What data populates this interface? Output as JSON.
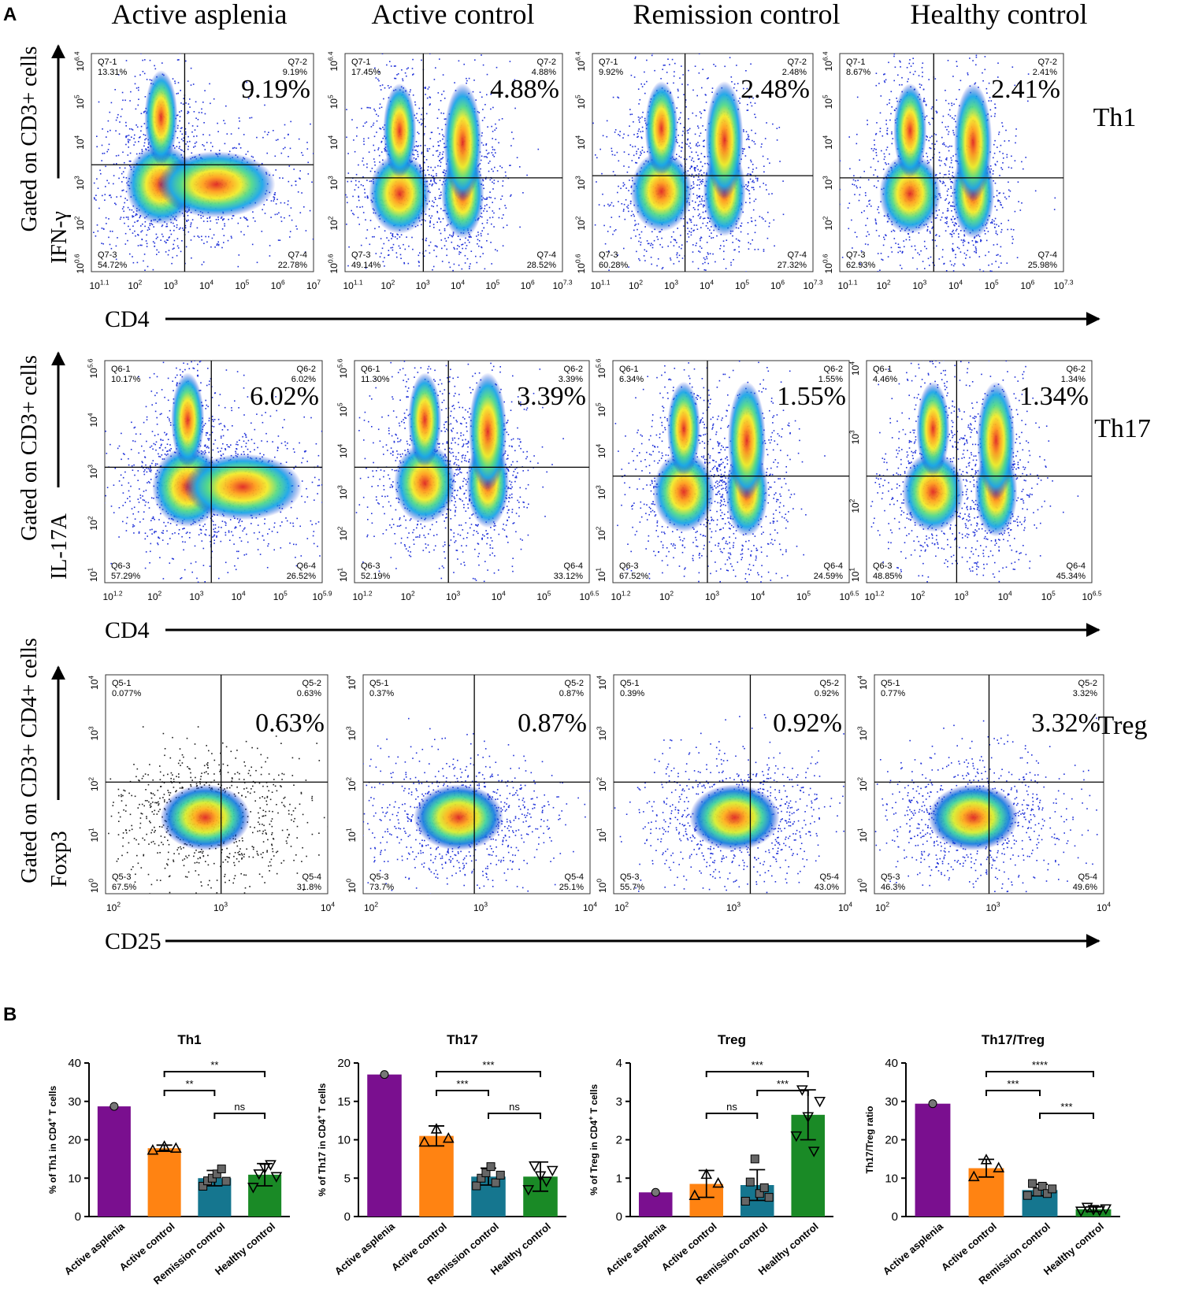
{
  "panel_labels": {
    "a": "A",
    "b": "B"
  },
  "conditions": [
    "Active asplenia",
    "Active control",
    "Remission control",
    "Healthy control"
  ],
  "flow_rows": [
    {
      "name": "Th1",
      "y_label_gate": "Gated on CD3+ cells",
      "y_marker": "IFN-γ",
      "x_marker": "CD4",
      "quadrant_prefix": "Q7",
      "plots": [
        {
          "q1": "13.31%",
          "q2": "9.19%",
          "q3": "54.72%",
          "q4": "22.78%",
          "big": "9.19%",
          "x_ticks": [
            "10^1.1",
            "10^2",
            "10^3",
            "10^4",
            "10^5",
            "10^6",
            "10^7"
          ],
          "y_ticks": [
            "10^0.6",
            "10^2",
            "10^3",
            "10^4",
            "10^5",
            "10^6.4"
          ]
        },
        {
          "q1": "17.45%",
          "q2": "4.88%",
          "q3": "49.14%",
          "q4": "28.52%",
          "big": "4.88%",
          "x_ticks": [
            "10^1.1",
            "10^2",
            "10^3",
            "10^4",
            "10^5",
            "10^6",
            "10^7.3"
          ],
          "y_ticks": [
            "10^0.6",
            "10^2",
            "10^3",
            "10^4",
            "10^5",
            "10^6.4"
          ]
        },
        {
          "q1": "9.92%",
          "q2": "2.48%",
          "q3": "60.28%",
          "q4": "27.32%",
          "big": "2.48%",
          "x_ticks": [
            "10^1.1",
            "10^2",
            "10^3",
            "10^4",
            "10^5",
            "10^6",
            "10^7.3"
          ],
          "y_ticks": [
            "10^0.6",
            "10^2",
            "10^3",
            "10^4",
            "10^5",
            "10^6.4"
          ]
        },
        {
          "q1": "8.67%",
          "q2": "2.41%",
          "q3": "62.93%",
          "q4": "25.98%",
          "big": "2.41%",
          "x_ticks": [
            "10^1.1",
            "10^2",
            "10^3",
            "10^4",
            "10^5",
            "10^6",
            "10^7.3"
          ],
          "y_ticks": [
            "10^0.6",
            "10^2",
            "10^3",
            "10^4",
            "10^5",
            "10^6.4"
          ]
        }
      ]
    },
    {
      "name": "Th17",
      "y_label_gate": "Gated on CD3+ cells",
      "y_marker": "IL-17A",
      "x_marker": "CD4",
      "quadrant_prefix": "Q6",
      "plots": [
        {
          "q1": "10.17%",
          "q2": "6.02%",
          "q3": "57.29%",
          "q4": "26.52%",
          "big": "6.02%",
          "x_ticks": [
            "10^1.2",
            "10^2",
            "10^3",
            "10^4",
            "10^5",
            "10^5.9"
          ],
          "y_ticks": [
            "10^1",
            "10^2",
            "10^3",
            "10^4",
            "10^5.6"
          ]
        },
        {
          "q1": "11.30%",
          "q2": "3.39%",
          "q3": "52.19%",
          "q4": "33.12%",
          "big": "3.39%",
          "x_ticks": [
            "10^1.2",
            "10^2",
            "10^3",
            "10^4",
            "10^5",
            "10^6.5"
          ],
          "y_ticks": [
            "10^1",
            "10^2",
            "10^3",
            "10^4",
            "10^5",
            "10^5.6"
          ]
        },
        {
          "q1": "6.34%",
          "q2": "1.55%",
          "q3": "67.52%",
          "q4": "24.59%",
          "big": "1.55%",
          "x_ticks": [
            "10^1.2",
            "10^2",
            "10^3",
            "10^4",
            "10^5",
            "10^6.5"
          ],
          "y_ticks": [
            "10^1",
            "10^2",
            "10^3",
            "10^4",
            "10^5",
            "10^5.6"
          ]
        },
        {
          "q1": "4.46%",
          "q2": "1.34%",
          "q3": "48.85%",
          "q4": "45.34%",
          "big": "1.34%",
          "x_ticks": [
            "10^1.2",
            "10^2",
            "10^3",
            "10^4",
            "10^5",
            "10^6.5"
          ],
          "y_ticks": [
            "10^1",
            "10^2",
            "10^3",
            "10^4"
          ]
        }
      ]
    },
    {
      "name": "Treg",
      "y_label_gate": "Gated on CD3+ CD4+ cells",
      "y_marker": "Foxp3",
      "x_marker": "CD25",
      "quadrant_prefix": "Q5",
      "plots": [
        {
          "q1": "0.077%",
          "q2": "0.63%",
          "q3": "67.5%",
          "q4": "31.8%",
          "big": "0.63%",
          "x_ticks": [
            "10^2",
            "10^3",
            "10^4"
          ],
          "y_ticks": [
            "10^0",
            "10^1",
            "10^2",
            "10^3",
            "10^4"
          ]
        },
        {
          "q1": "0.37%",
          "q2": "0.87%",
          "q3": "73.7%",
          "q4": "25.1%",
          "big": "0.87%",
          "x_ticks": [
            "10^2",
            "10^3",
            "10^4"
          ],
          "y_ticks": [
            "10^0",
            "10^1",
            "10^2",
            "10^3",
            "10^4"
          ]
        },
        {
          "q1": "0.39%",
          "q2": "0.92%",
          "q3": "55.7%",
          "q4": "43.0%",
          "big": "0.92%",
          "x_ticks": [
            "10^2",
            "10^3",
            "10^4"
          ],
          "y_ticks": [
            "10^0",
            "10^1",
            "10^2",
            "10^3",
            "10^4"
          ]
        },
        {
          "q1": "0.77%",
          "q2": "3.32%",
          "q3": "46.3%",
          "q4": "49.6%",
          "big": "3.32%",
          "x_ticks": [
            "10^2",
            "10^3",
            "10^4"
          ],
          "y_ticks": [
            "10^0",
            "10^1",
            "10^2",
            "10^3",
            "10^4"
          ]
        }
      ]
    }
  ],
  "chart_data": [
    {
      "type": "bar",
      "title": "Th1",
      "ylabel": "% of Th1 in CD4+ T cells",
      "ylim": [
        0,
        40
      ],
      "yticks": [
        0,
        10,
        20,
        30,
        40
      ],
      "categories": [
        "Active asplenia",
        "Active control",
        "Remission control",
        "Healthy control"
      ],
      "values": [
        28.7,
        17.8,
        10.0,
        10.9
      ],
      "errors": [
        0,
        0.8,
        2.0,
        2.9
      ],
      "points": [
        [
          28.7
        ],
        [
          17.3,
          18.3,
          17.8
        ],
        [
          7.9,
          9.3,
          10.0,
          11.1,
          12.4,
          9.2
        ],
        [
          7.6,
          11.1,
          12.6,
          13.5,
          10.4
        ]
      ],
      "markers": [
        "circle",
        "triangle-up",
        "square",
        "triangle-down"
      ],
      "colors": [
        "#7a0f8f",
        "#ff8312",
        "#15768f",
        "#1a8a26"
      ],
      "comparisons": [
        {
          "from": 1,
          "to": 3,
          "label": "**"
        },
        {
          "from": 1,
          "to": 2,
          "label": "**"
        },
        {
          "from": 2,
          "to": 3,
          "label": "ns"
        }
      ]
    },
    {
      "type": "bar",
      "title": "Th17",
      "ylabel": "% of Th17 in CD4+ T cells",
      "ylim": [
        0,
        20
      ],
      "yticks": [
        0,
        5,
        10,
        15,
        20
      ],
      "categories": [
        "Active asplenia",
        "Active control",
        "Remission control",
        "Healthy control"
      ],
      "values": [
        18.5,
        10.5,
        5.2,
        5.2
      ],
      "errors": [
        0,
        1.3,
        1.1,
        1.9
      ],
      "points": [
        [
          18.5
        ],
        [
          9.7,
          11.4,
          10.2
        ],
        [
          4.0,
          5.0,
          5.7,
          6.5,
          4.4,
          5.4
        ],
        [
          3.5,
          6.6,
          5.3,
          4.6,
          6.0
        ]
      ],
      "markers": [
        "circle",
        "triangle-up",
        "square",
        "triangle-down"
      ],
      "colors": [
        "#7a0f8f",
        "#ff8312",
        "#15768f",
        "#1a8a26"
      ],
      "comparisons": [
        {
          "from": 1,
          "to": 3,
          "label": "***"
        },
        {
          "from": 1,
          "to": 2,
          "label": "***"
        },
        {
          "from": 2,
          "to": 3,
          "label": "ns"
        }
      ]
    },
    {
      "type": "bar",
      "title": "Treg",
      "ylabel": "% of Treg in CD4+ T cells",
      "ylim": [
        0,
        4
      ],
      "yticks": [
        0,
        1,
        2,
        3,
        4
      ],
      "categories": [
        "Active asplenia",
        "Active control",
        "Remission control",
        "Healthy control"
      ],
      "values": [
        0.63,
        0.85,
        0.82,
        2.65
      ],
      "errors": [
        0,
        0.35,
        0.4,
        0.65
      ],
      "points": [
        [
          0.63
        ],
        [
          0.55,
          1.1,
          0.87
        ],
        [
          0.4,
          0.9,
          1.5,
          0.6,
          0.75,
          0.5
        ],
        [
          2.1,
          3.3,
          2.6,
          1.7,
          3.0
        ]
      ],
      "markers": [
        "circle",
        "triangle-up",
        "square",
        "triangle-down"
      ],
      "colors": [
        "#7a0f8f",
        "#ff8312",
        "#15768f",
        "#1a8a26"
      ],
      "comparisons": [
        {
          "from": 1,
          "to": 3,
          "label": "***"
        },
        {
          "from": 2,
          "to": 3,
          "label": "***"
        },
        {
          "from": 1,
          "to": 2,
          "label": "ns"
        }
      ]
    },
    {
      "type": "bar",
      "title": "Th17/Treg",
      "ylabel": "Th17/Treg ratio",
      "ylim": [
        0,
        40
      ],
      "yticks": [
        0,
        10,
        20,
        30,
        40
      ],
      "categories": [
        "Active asplenia",
        "Active control",
        "Remission control",
        "Healthy control"
      ],
      "values": [
        29.4,
        12.6,
        6.9,
        1.9
      ],
      "errors": [
        0,
        2.3,
        1.5,
        0.6
      ],
      "points": [
        [
          29.4
        ],
        [
          10.4,
          14.8,
          12.7
        ],
        [
          5.5,
          8.6,
          6.4,
          7.9,
          6.0,
          7.2
        ],
        [
          1.4,
          2.4,
          1.8,
          1.6,
          2.0
        ]
      ],
      "markers": [
        "circle",
        "triangle-up",
        "square",
        "triangle-down"
      ],
      "colors": [
        "#7a0f8f",
        "#ff8312",
        "#15768f",
        "#1a8a26"
      ],
      "comparisons": [
        {
          "from": 1,
          "to": 3,
          "label": "****"
        },
        {
          "from": 1,
          "to": 2,
          "label": "***"
        },
        {
          "from": 2,
          "to": 3,
          "label": "***"
        }
      ]
    }
  ]
}
